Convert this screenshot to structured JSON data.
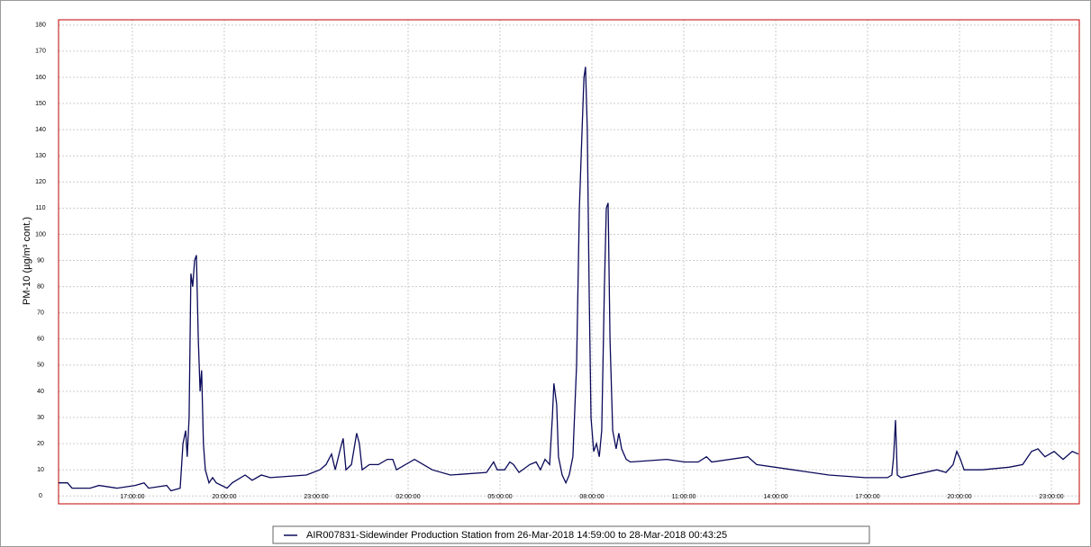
{
  "chart_data": {
    "type": "line",
    "y_label": "PM-10 (µg/m³ cont.)",
    "x": [
      14.59,
      14.88,
      15.03,
      15.62,
      15.91,
      16.5,
      17.09,
      17.38,
      17.53,
      18.12,
      18.26,
      18.56,
      18.65,
      18.74,
      18.79,
      18.85,
      18.91,
      18.97,
      19.03,
      19.09,
      19.15,
      19.21,
      19.26,
      19.32,
      19.38,
      19.5,
      19.62,
      19.74,
      20.09,
      20.26,
      20.68,
      20.91,
      21.21,
      21.5,
      22.68,
      23.12,
      23.32,
      23.5,
      23.62,
      23.79,
      23.88,
      23.97,
      24.15,
      24.32,
      24.41,
      24.5,
      24.74,
      25.03,
      25.32,
      25.5,
      25.62,
      26.21,
      26.5,
      26.79,
      27.38,
      28.56,
      28.79,
      28.91,
      29.15,
      29.32,
      29.44,
      29.62,
      29.97,
      30.18,
      30.32,
      30.47,
      30.62,
      30.71,
      30.76,
      30.85,
      30.91,
      31.03,
      31.15,
      31.26,
      31.38,
      31.5,
      31.59,
      31.68,
      31.74,
      31.79,
      31.85,
      31.91,
      31.97,
      32.06,
      32.15,
      32.24,
      32.32,
      32.41,
      32.47,
      32.53,
      32.59,
      32.68,
      32.79,
      32.88,
      32.97,
      33.12,
      33.26,
      34.44,
      35.03,
      35.47,
      35.74,
      35.91,
      37.09,
      37.38,
      38.56,
      39.74,
      40.91,
      41.65,
      41.79,
      41.85,
      41.91,
      41.97,
      42.09,
      43.26,
      43.56,
      43.79,
      43.91,
      44.03,
      44.15,
      44.74,
      45.62,
      46.06,
      46.35,
      46.56,
      46.79,
      47.09,
      47.38,
      47.68,
      47.88
    ],
    "series": [
      {
        "name": "AIR007831-Sidewinder Production Station from 26-Mar-2018 14:59:00 to 28-Mar-2018 00:43:25",
        "color": "#0a0a5a",
        "values": [
          5,
          5,
          3,
          3,
          4,
          3,
          4,
          5,
          3,
          4,
          2,
          3,
          20,
          25,
          15,
          30,
          85,
          80,
          90,
          92,
          60,
          40,
          48,
          20,
          10,
          5,
          7,
          5,
          3,
          5,
          8,
          6,
          8,
          7,
          8,
          10,
          12,
          16,
          10,
          18,
          22,
          10,
          12,
          24,
          20,
          10,
          12,
          12,
          14,
          14,
          10,
          14,
          12,
          10,
          8,
          9,
          13,
          10,
          10,
          13,
          12,
          9,
          12,
          13,
          10,
          14,
          12,
          30,
          43,
          35,
          15,
          8,
          5,
          8,
          15,
          50,
          110,
          140,
          160,
          164,
          140,
          80,
          30,
          17,
          20,
          15,
          25,
          80,
          110,
          112,
          60,
          25,
          18,
          24,
          18,
          14,
          13,
          14,
          13,
          13,
          15,
          13,
          15,
          12,
          10,
          8,
          7,
          7,
          8,
          15,
          29,
          8,
          7,
          10,
          9,
          12,
          17,
          14,
          10,
          10,
          11,
          12,
          17,
          18,
          15,
          17,
          14,
          17,
          16
        ]
      }
    ],
    "xlim": [
      14.59,
      47.91
    ],
    "xticks": [
      {
        "value": 17,
        "label": "17:00:00"
      },
      {
        "value": 20,
        "label": "20:00:00"
      },
      {
        "value": 23,
        "label": "23:00:00"
      },
      {
        "value": 26,
        "label": "02:00:00"
      },
      {
        "value": 29,
        "label": "05:00:00"
      },
      {
        "value": 32,
        "label": "08:00:00"
      },
      {
        "value": 35,
        "label": "11:00:00"
      },
      {
        "value": 38,
        "label": "14:00:00"
      },
      {
        "value": 41,
        "label": "17:00:00"
      },
      {
        "value": 44,
        "label": "20:00:00"
      },
      {
        "value": 47,
        "label": "23:00:00"
      }
    ],
    "ylim": [
      -3,
      182
    ],
    "yticks": [
      0,
      10,
      20,
      30,
      40,
      50,
      60,
      70,
      80,
      90,
      100,
      110,
      120,
      130,
      140,
      150,
      160,
      170,
      180
    ],
    "grid": true,
    "legend": "bottom"
  }
}
